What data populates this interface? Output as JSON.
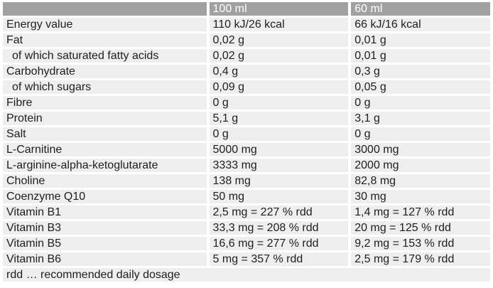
{
  "chart_data": {
    "type": "table",
    "columns": [
      "",
      "100 ml",
      "60 ml"
    ],
    "rows": [
      {
        "label": "Energy value",
        "sub": false,
        "values": [
          "110 kJ/26 kcal",
          "66 kJ/16 kcal"
        ]
      },
      {
        "label": "Fat",
        "sub": false,
        "values": [
          "0,02 g",
          "0,01 g"
        ]
      },
      {
        "label": "of which saturated fatty acids",
        "sub": true,
        "values": [
          "0,02 g",
          "0,01 g"
        ]
      },
      {
        "label": "Carbohydrate",
        "sub": false,
        "values": [
          "0,4 g",
          "0,3 g"
        ]
      },
      {
        "label": "of which sugars",
        "sub": true,
        "values": [
          "0,09 g",
          "0,05 g"
        ]
      },
      {
        "label": "Fibre",
        "sub": false,
        "values": [
          "0 g",
          "0 g"
        ]
      },
      {
        "label": "Protein",
        "sub": false,
        "values": [
          "5,1 g",
          "3,1 g"
        ]
      },
      {
        "label": "Salt",
        "sub": false,
        "values": [
          "0 g",
          "0 g"
        ]
      },
      {
        "label": "L-Carnitine",
        "sub": false,
        "values": [
          "5000 mg",
          "3000 mg"
        ]
      },
      {
        "label": "L-arginine-alpha-ketoglutarate",
        "sub": false,
        "values": [
          "3333 mg",
          "2000 mg"
        ]
      },
      {
        "label": "Choline",
        "sub": false,
        "values": [
          "138 mg",
          "82,8 mg"
        ]
      },
      {
        "label": "Coenzyme Q10",
        "sub": false,
        "values": [
          "50 mg",
          "30 mg"
        ]
      },
      {
        "label": "Vitamin B1",
        "sub": false,
        "values": [
          "2,5 mg = 227 % rdd",
          "1,4 mg = 127 % rdd"
        ]
      },
      {
        "label": "Vitamin B3",
        "sub": false,
        "values": [
          "33,3 mg = 208 % rdd",
          "20 mg = 125 % rdd"
        ]
      },
      {
        "label": "Vitamin B5",
        "sub": false,
        "values": [
          "16,6 mg = 277 % rdd",
          "9,2 mg = 153 % rdd"
        ]
      },
      {
        "label": "Vitamin B6",
        "sub": false,
        "values": [
          "5 mg = 357 % rdd",
          "2,5 mg = 179 % rdd"
        ]
      }
    ],
    "footnote": "rdd … recommended daily dosage",
    "layout": {
      "grid": "white gutters between gray cells",
      "legend_position": "none"
    }
  },
  "colors": {
    "header_bg": "#a1a1a1",
    "header_text": "#ffffff",
    "row_bg": "#eeeeee",
    "gutter": "#ffffff",
    "body_text": "#1e1e1e"
  }
}
